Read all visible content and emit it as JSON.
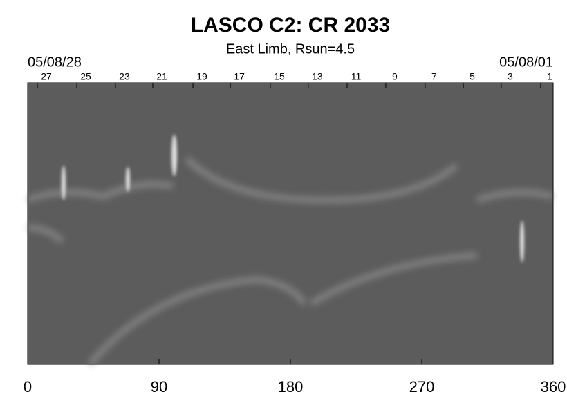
{
  "chart_data": {
    "type": "synoptic-map",
    "title": "LASCO C2: CR 2033",
    "subtitle": "East Limb, Rsun=4.5",
    "start_date": "05/08/28",
    "end_date": "05/08/01",
    "xlim": [
      0,
      360
    ],
    "xticks": [
      0,
      90,
      180,
      270,
      360
    ],
    "top_ticks": [
      {
        "value": 12.8,
        "label": "27"
      },
      {
        "value": 39.8,
        "label": "25"
      },
      {
        "value": 66.3,
        "label": "23"
      },
      {
        "value": 91.9,
        "label": "21"
      },
      {
        "value": 119.4,
        "label": "19"
      },
      {
        "value": 145,
        "label": "17"
      },
      {
        "value": 172.4,
        "label": "15"
      },
      {
        "value": 198.4,
        "label": "13"
      },
      {
        "value": 225,
        "label": "11"
      },
      {
        "value": 251.5,
        "label": "9"
      },
      {
        "value": 278.5,
        "label": "7"
      },
      {
        "value": 304.6,
        "label": "5"
      },
      {
        "value": 330.6,
        "label": "3"
      },
      {
        "value": 357.6,
        "label": "1"
      }
    ]
  }
}
